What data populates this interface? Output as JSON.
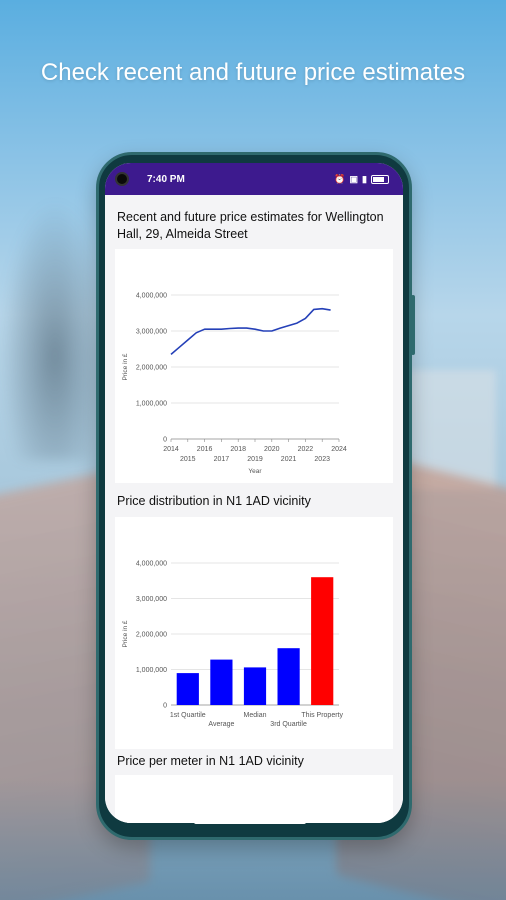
{
  "headline": "Check recent and future price estimates",
  "status": {
    "time": "7:40 PM",
    "icons": [
      "alarm-icon",
      "sim-icon",
      "signal-icon",
      "battery-icon"
    ],
    "battery_label": "69"
  },
  "sections": {
    "estimates_title": "Recent and future price estimates for Wellington Hall, 29, Almeida Street",
    "distribution_title": "Price distribution in N1 1AD vicinity",
    "per_meter_title": "Price per meter in N1 1AD vicinity"
  },
  "colors": {
    "line": "#2540b8",
    "bar": "#0000ff",
    "highlight": "#ff0000",
    "statusbar": "#3d1a8e"
  },
  "chart_data": [
    {
      "type": "line",
      "title": "",
      "xlabel": "Year",
      "ylabel": "Price in £",
      "x_ticks": [
        "2014",
        "2015",
        "2016",
        "2017",
        "2018",
        "2019",
        "2020",
        "2021",
        "2022",
        "2023",
        "2024"
      ],
      "y_ticks": [
        "0",
        "1,000,000",
        "2,000,000",
        "3,000,000",
        "4,000,000"
      ],
      "ylim": [
        0,
        4000000
      ],
      "xlim": [
        2014,
        2024
      ],
      "series": [
        {
          "x": [
            2014,
            2014.5,
            2015,
            2015.5,
            2016,
            2016.5,
            2017,
            2017.5,
            2018,
            2018.5,
            2019,
            2019.5,
            2020,
            2020.5,
            2021,
            2021.5,
            2022,
            2022.5,
            2023,
            2023.5
          ],
          "values": [
            2350000,
            2550000,
            2750000,
            2950000,
            3050000,
            3050000,
            3050000,
            3070000,
            3080000,
            3080000,
            3050000,
            3000000,
            3000000,
            3080000,
            3150000,
            3220000,
            3350000,
            3600000,
            3620000,
            3580000
          ]
        }
      ],
      "grid": true
    },
    {
      "type": "bar",
      "title": "",
      "ylabel": "Price in £",
      "categories": [
        "1st Quartile",
        "Average",
        "Median",
        "3rd Quartile",
        "This Property"
      ],
      "values": [
        900000,
        1280000,
        1060000,
        1600000,
        3600000
      ],
      "highlight_index": 4,
      "y_ticks": [
        "0",
        "1,000,000",
        "2,000,000",
        "3,000,000",
        "4,000,000"
      ],
      "ylim": [
        0,
        4000000
      ],
      "grid": true
    }
  ]
}
